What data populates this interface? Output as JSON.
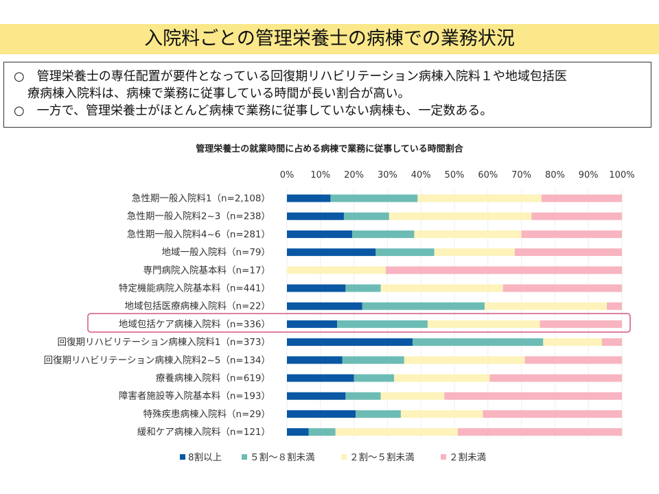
{
  "page": {
    "title": "入院料ごとの管理栄養士の病棟での業務状況",
    "bullets": [
      "○　管理栄養士の専任配置が要件となっている回復期リハビリテーション病棟入院料１や地域包括医",
      "療病棟入院料は、病棟で業務に従事している時間が長い割合が高い。",
      "○　一方で、管理栄養士がほとんど病棟で業務に従事していない病棟も、一定数ある。"
    ]
  },
  "chart_data": {
    "type": "bar",
    "orientation": "horizontal",
    "stacked": "percent",
    "title": "管理栄養士の就業時間に占める病棟で業務に従事している時間割合",
    "xlim": [
      0,
      100
    ],
    "x_ticks": [
      "0%",
      "10%",
      "20%",
      "30%",
      "40%",
      "50%",
      "60%",
      "70%",
      "80%",
      "90%",
      "100%"
    ],
    "legend_position": "bottom",
    "highlighted_category": "地域包括ケア病棟入院料（n=336）",
    "categories": [
      "急性期一般入院料1（n=2,108）",
      "急性期一般入院料2~3（n=238）",
      "急性期一般入院料4~6（n=281）",
      "地域一般入院料（n=79）",
      "専門病院入院基本料（n=17）",
      "特定機能病院入院基本料（n=441）",
      "地域包括医療病棟入院料（n=22）",
      "地域包括ケア病棟入院料（n=336）",
      "回復期リハビリテーション病棟入院料1（n=373）",
      "回復期リハビリテーション病棟入院料2~5（n=134）",
      "療養病棟入院料（n=619）",
      "障害者施設等入院基本料（n=193）",
      "特殊疾患病棟入院料（n=29）",
      "緩和ケア病棟入院料（n=121）"
    ],
    "series": [
      {
        "name": "8割以上",
        "color": "#0a57a4",
        "values": [
          13,
          17,
          19.5,
          26.5,
          0,
          17.5,
          22.5,
          15,
          37.5,
          16.5,
          20,
          17.5,
          20.5,
          6.5
        ]
      },
      {
        "name": "５割～８割未満",
        "color": "#6cbcb5",
        "values": [
          26,
          13.5,
          18.5,
          17.5,
          0,
          10.5,
          36.5,
          27,
          39,
          18.5,
          12,
          10.5,
          13.5,
          8
        ]
      },
      {
        "name": "２割～５割未満",
        "color": "#fdf3bb",
        "values": [
          37,
          42.5,
          32,
          24,
          29.5,
          36.5,
          36.5,
          33.5,
          17.5,
          36,
          28.5,
          19,
          24.5,
          36.5
        ]
      },
      {
        "name": "２割未満",
        "color": "#f8b4c0",
        "values": [
          24,
          27,
          30,
          32,
          70.5,
          35.5,
          4.5,
          24.5,
          6,
          29,
          39.5,
          53,
          41.5,
          49
        ]
      }
    ]
  }
}
